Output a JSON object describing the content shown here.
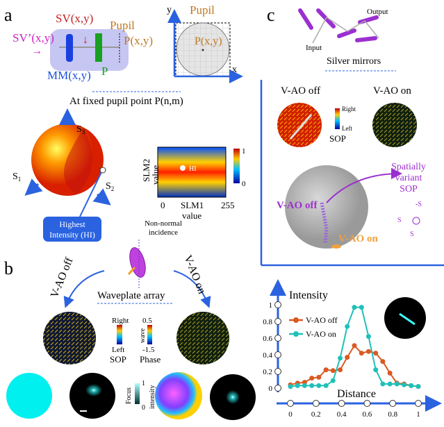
{
  "panel_a": {
    "label": "a",
    "sv": "SV(x,y)",
    "sv_prime": "SV’(x,y)",
    "pupil": "Pupil",
    "pxy": "P(x,y)",
    "mm": "MM(x,y)",
    "p": "P",
    "pupil2": "Pupil",
    "pxy2": "P(x,y)",
    "x": "x",
    "y": "y",
    "fixed": "At fixed pupil point P(n,m)",
    "s1": "S",
    "s2": "S",
    "s3": "S",
    "s1sub": "1",
    "s2sub": "2",
    "s3sub": "3",
    "hi_box": [
      "Highest",
      "Intensity (HI)"
    ],
    "slm2": "SLM2",
    "value": "value",
    "slm1": "SLM1",
    "slm1_value": "value",
    "tick0": "0",
    "tick255": "255",
    "hi": "HI",
    "cb1": "1",
    "cb0": "0"
  },
  "panel_b": {
    "label": "b",
    "nonnormal": [
      "Non-normal",
      "incidence"
    ],
    "vao_off": "V-AO off",
    "vao_on": "V-AO on",
    "waveplate": "Waveplate array",
    "right": "Right",
    "left": "Left",
    "sop": "SOP",
    "w05": "0.5",
    "wave": "wave",
    "wm15": "-1.5",
    "phase": "Phase",
    "focus": "Focus",
    "intensity": "intensity",
    "i1": "1",
    "i0": "0"
  },
  "panel_c": {
    "label": "c",
    "input": "Input",
    "output": "Output",
    "silver": "Silver mirrors",
    "off": "V-AO off",
    "on": "V-AO on",
    "right": "Right",
    "left": "Left",
    "sop": "SOP",
    "sphere_off": "V-AO off",
    "sphere_on": "V-AO on",
    "spatial": [
      "Spatially",
      "variant",
      "SOP"
    ],
    "ms1": "-S",
    "s2": "S",
    "s3": "S"
  },
  "colors": {
    "accent": "#2a62e0",
    "off": "#d95a23",
    "on": "#20c0b8",
    "violet": "#9b30d0"
  },
  "chart_data": {
    "type": "line",
    "xlabel": "Distance",
    "ylabel": "Intensity",
    "xlim": [
      0,
      1
    ],
    "ylim": [
      0,
      1
    ],
    "xticks": [
      "0",
      "0.2",
      "0.4",
      "0.6",
      "0.8",
      "1"
    ],
    "yticks": [
      "0",
      "0.2",
      "0.4",
      "0.6",
      "0.8",
      "1"
    ],
    "legend": "top-left",
    "series": [
      {
        "name": "V-AO off",
        "color": "#d95a23",
        "x": [
          0,
          0.0556,
          0.111,
          0.167,
          0.222,
          0.278,
          0.333,
          0.389,
          0.444,
          0.5,
          0.556,
          0.611,
          0.667,
          0.722,
          0.778,
          0.833,
          0.889,
          0.944,
          1
        ],
        "y": [
          0.04,
          0.06,
          0.07,
          0.12,
          0.13,
          0.22,
          0.21,
          0.22,
          0.37,
          0.51,
          0.42,
          0.44,
          0.42,
          0.32,
          0.18,
          0.06,
          0.05,
          0.03,
          0.02
        ]
      },
      {
        "name": "V-AO on",
        "color": "#20c0b8",
        "x": [
          0,
          0.0556,
          0.111,
          0.167,
          0.222,
          0.278,
          0.333,
          0.389,
          0.444,
          0.5,
          0.556,
          0.611,
          0.667,
          0.722,
          0.778,
          0.833,
          0.889,
          0.944,
          1
        ],
        "y": [
          0.02,
          0.03,
          0.03,
          0.03,
          0.03,
          0.03,
          0.09,
          0.36,
          0.74,
          0.97,
          0.97,
          0.62,
          0.22,
          0.05,
          0.05,
          0.05,
          0.04,
          0.03,
          0.02
        ]
      }
    ]
  }
}
